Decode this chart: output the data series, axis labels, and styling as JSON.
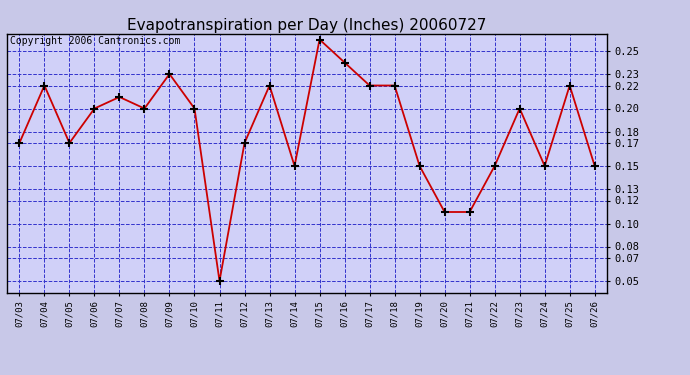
{
  "title": "Evapotranspiration per Day (Inches) 20060727",
  "copyright": "Copyright 2006 Cantronics.com",
  "x_labels": [
    "07/03",
    "07/04",
    "07/05",
    "07/06",
    "07/07",
    "07/08",
    "07/09",
    "07/10",
    "07/11",
    "07/12",
    "07/13",
    "07/14",
    "07/15",
    "07/16",
    "07/17",
    "07/18",
    "07/19",
    "07/20",
    "07/21",
    "07/22",
    "07/23",
    "07/24",
    "07/25",
    "07/26"
  ],
  "y_values": [
    0.17,
    0.22,
    0.17,
    0.2,
    0.21,
    0.2,
    0.23,
    0.2,
    0.05,
    0.17,
    0.22,
    0.15,
    0.26,
    0.24,
    0.22,
    0.22,
    0.15,
    0.11,
    0.11,
    0.15,
    0.2,
    0.15,
    0.22,
    0.15
  ],
  "y_ticks": [
    0.05,
    0.07,
    0.08,
    0.1,
    0.12,
    0.13,
    0.15,
    0.17,
    0.18,
    0.2,
    0.22,
    0.23,
    0.25
  ],
  "y_min": 0.04,
  "y_max": 0.265,
  "line_color": "#cc0000",
  "marker_color": "#cc0000",
  "grid_color": "#3333cc",
  "bg_color": "#c8c8e8",
  "plot_bg_color": "#d0d0f8",
  "title_fontsize": 11,
  "copyright_fontsize": 7
}
